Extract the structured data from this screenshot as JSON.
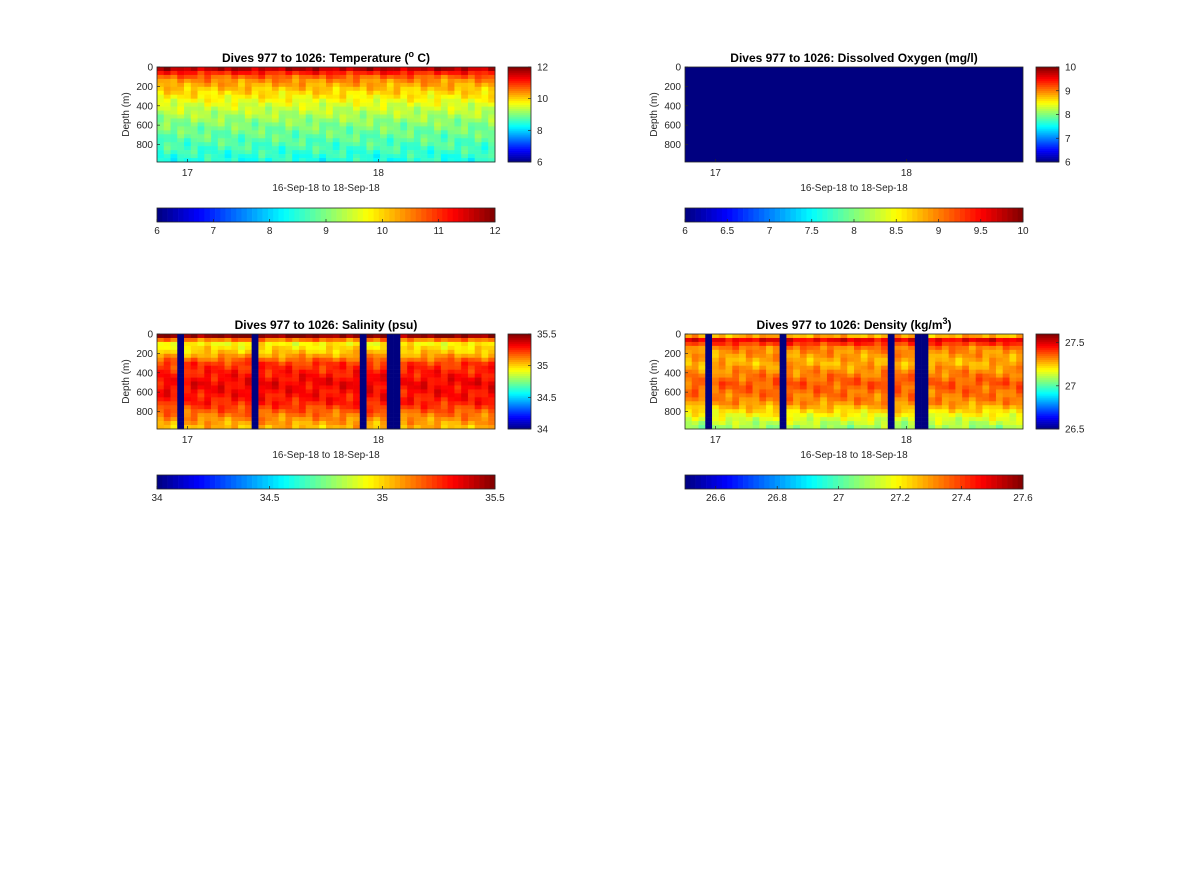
{
  "chart_data": [
    {
      "type": "heatmap",
      "title": "Dives 977 to 1026: Temperature (",
      "title_sup": "o",
      "title_tail": " C)",
      "xlabel": "16-Sep-18 to 18-Sep-18",
      "ylabel": "Depth (m)",
      "x_ticks": [
        "17",
        "18"
      ],
      "y_ticks": [
        0,
        200,
        400,
        600,
        800
      ],
      "ylim": [
        0,
        980
      ],
      "colorbar_right": {
        "ticks": [
          "6",
          "8",
          "10",
          "12"
        ],
        "range": [
          6,
          12
        ]
      },
      "colorbar_bottom": {
        "ticks": [
          "6",
          "7",
          "8",
          "9",
          "10",
          "11",
          "12"
        ],
        "range": [
          6,
          12
        ]
      },
      "colormap": "jet",
      "profile": [
        {
          "depth": 0,
          "value": 11.9
        },
        {
          "depth": 40,
          "value": 11.2
        },
        {
          "depth": 120,
          "value": 10.4
        },
        {
          "depth": 250,
          "value": 9.9
        },
        {
          "depth": 400,
          "value": 9.4
        },
        {
          "depth": 600,
          "value": 8.9
        },
        {
          "depth": 800,
          "value": 8.6
        },
        {
          "depth": 980,
          "value": 8.3
        }
      ],
      "gap_dives": [],
      "uniform_value": null
    },
    {
      "type": "heatmap",
      "title": "Dives 977 to 1026: Dissolved Oxygen (mg/l)",
      "title_sup": "",
      "title_tail": "",
      "xlabel": "16-Sep-18 to 18-Sep-18",
      "ylabel": "Depth (m)",
      "x_ticks": [
        "17",
        "18"
      ],
      "y_ticks": [
        0,
        200,
        400,
        600,
        800
      ],
      "ylim": [
        0,
        980
      ],
      "colorbar_right": {
        "ticks": [
          "6",
          "7",
          "8",
          "9",
          "10"
        ],
        "range": [
          6,
          10
        ]
      },
      "colorbar_bottom": {
        "ticks": [
          "6",
          "6.5",
          "7",
          "7.5",
          "8",
          "8.5",
          "9",
          "9.5",
          "10"
        ],
        "range": [
          6,
          10
        ]
      },
      "colormap": "jet",
      "profile": [],
      "gap_dives": [],
      "uniform_value": 6
    },
    {
      "type": "heatmap",
      "title": "Dives 977 to 1026: Salinity (psu)",
      "title_sup": "",
      "title_tail": "",
      "xlabel": "16-Sep-18 to 18-Sep-18",
      "ylabel": "Depth (m)",
      "x_ticks": [
        "17",
        "18"
      ],
      "y_ticks": [
        0,
        200,
        400,
        600,
        800
      ],
      "ylim": [
        0,
        980
      ],
      "colorbar_right": {
        "ticks": [
          "34",
          "34.5",
          "35",
          "35.5"
        ],
        "range": [
          34,
          35.5
        ]
      },
      "colorbar_bottom": {
        "ticks": [
          "34",
          "34.5",
          "35",
          "35.5"
        ],
        "range": [
          34,
          35.5
        ]
      },
      "colormap": "jet",
      "profile": [
        {
          "depth": 0,
          "value": 35.45
        },
        {
          "depth": 30,
          "value": 35.45
        },
        {
          "depth": 80,
          "value": 34.9
        },
        {
          "depth": 200,
          "value": 35.0
        },
        {
          "depth": 300,
          "value": 35.2
        },
        {
          "depth": 500,
          "value": 35.3
        },
        {
          "depth": 700,
          "value": 35.25
        },
        {
          "depth": 850,
          "value": 35.1
        },
        {
          "depth": 980,
          "value": 35.0
        }
      ],
      "gap_dives": [
        3,
        14,
        30,
        34,
        35
      ],
      "uniform_value": null
    },
    {
      "type": "heatmap",
      "title": "Dives 977 to 1026: Density (kg/m",
      "title_sup": "3",
      "title_tail": ")",
      "xlabel": "16-Sep-18 to 18-Sep-18",
      "ylabel": "Depth (m)",
      "x_ticks": [
        "17",
        "18"
      ],
      "y_ticks": [
        0,
        200,
        400,
        600,
        800
      ],
      "ylim": [
        0,
        980
      ],
      "colorbar_right": {
        "ticks": [
          "26.5",
          "27",
          "27.5"
        ],
        "range": [
          26.5,
          27.6
        ]
      },
      "colorbar_bottom": {
        "ticks": [
          "26.6",
          "26.8",
          "27",
          "27.2",
          "27.4",
          "27.6"
        ],
        "range": [
          26.5,
          27.6
        ]
      },
      "colormap": "jet",
      "profile": [
        {
          "depth": 0,
          "value": 27.0
        },
        {
          "depth": 40,
          "value": 27.5
        },
        {
          "depth": 150,
          "value": 27.3
        },
        {
          "depth": 300,
          "value": 27.25
        },
        {
          "depth": 500,
          "value": 27.35
        },
        {
          "depth": 700,
          "value": 27.3
        },
        {
          "depth": 850,
          "value": 27.15
        },
        {
          "depth": 980,
          "value": 27.05
        }
      ],
      "gap_dives": [
        3,
        14,
        30,
        34,
        35
      ],
      "uniform_value": null
    }
  ]
}
